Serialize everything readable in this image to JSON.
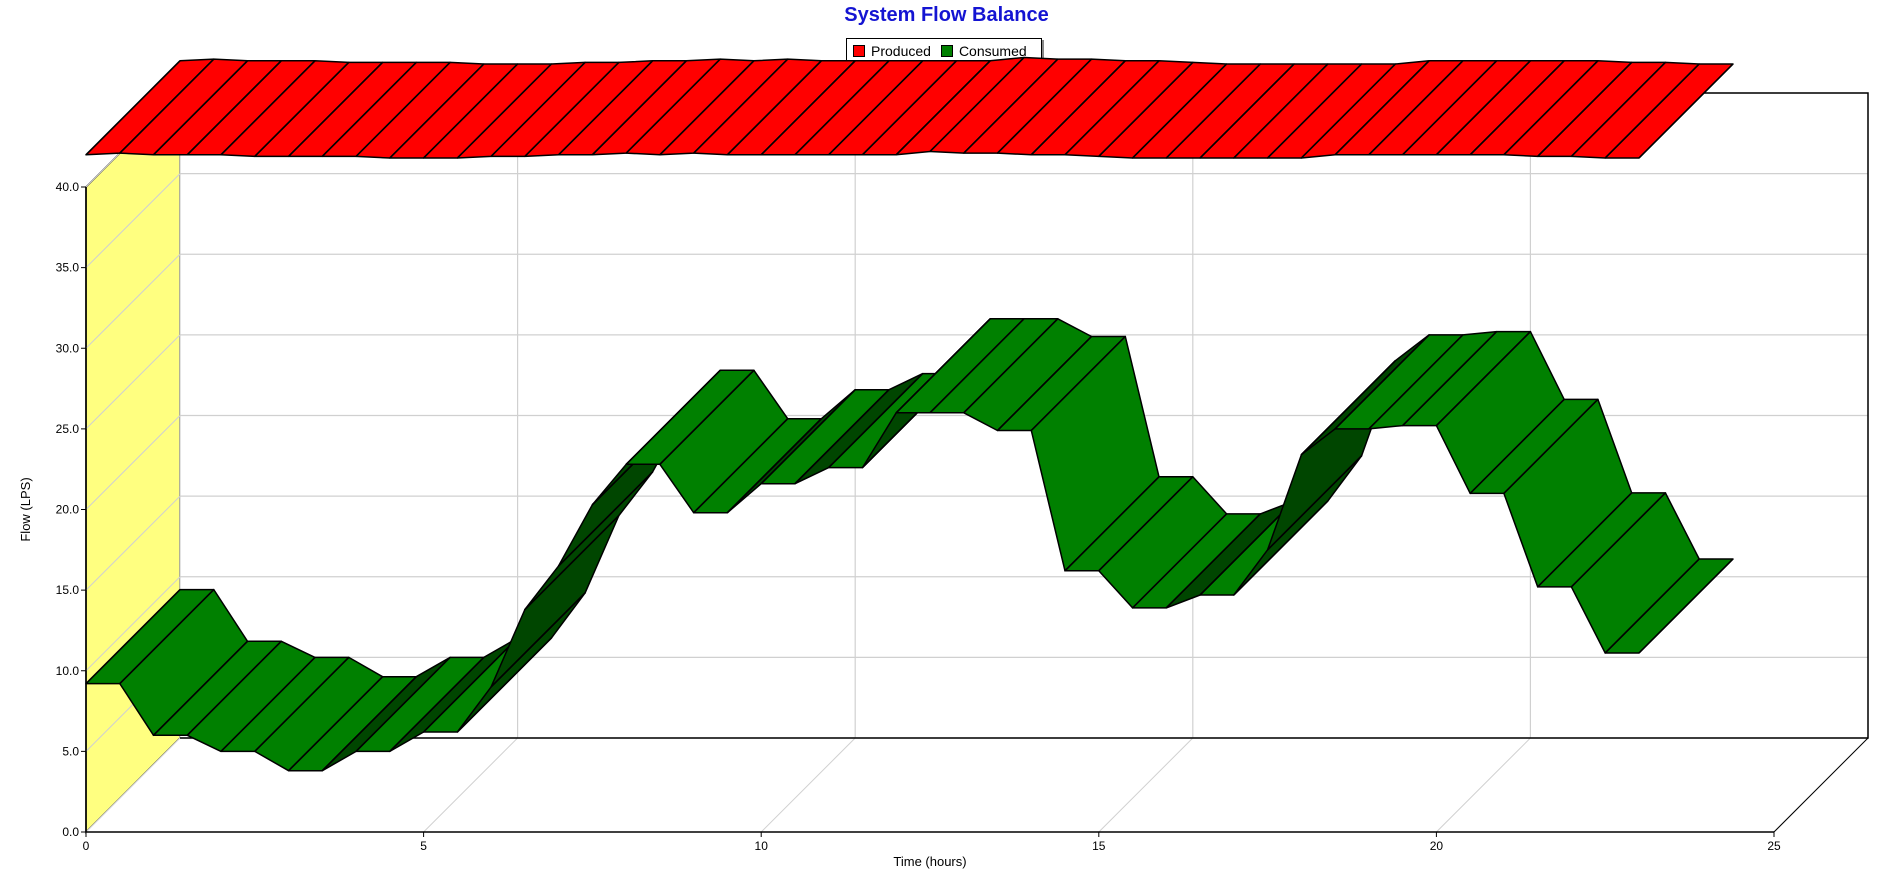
{
  "chart_data": {
    "type": "area",
    "title": "System Flow Balance",
    "xlabel": "Time (hours)",
    "ylabel": "Flow (LPS)",
    "xlim": [
      0,
      25
    ],
    "ylim": [
      0,
      40
    ],
    "x_ticks": [
      "0",
      "5",
      "10",
      "15",
      "20",
      "25"
    ],
    "y_ticks": [
      "0.0",
      "5.0",
      "10.0",
      "15.0",
      "20.0",
      "25.0",
      "30.0",
      "35.0",
      "40.0"
    ],
    "grid": true,
    "legend_position": "top-center",
    "colors": {
      "produced": "#ff0000",
      "consumed": "#008000",
      "back_wall": "#ffff80",
      "title": "#1414d2"
    },
    "series": [
      {
        "name": "Produced",
        "x": [
          0,
          0.5,
          1,
          1.5,
          2,
          2.5,
          3,
          3.5,
          4,
          4.5,
          5,
          5.5,
          6,
          6.5,
          7,
          7.5,
          8,
          8.5,
          9,
          9.5,
          10,
          10.5,
          11,
          11.5,
          12,
          12.5,
          13,
          13.5,
          14,
          14.5,
          15,
          15.5,
          16,
          16.5,
          17,
          17.5,
          18,
          18.5,
          19,
          19.5,
          20,
          20.5,
          21,
          21.5,
          22,
          22.5,
          23
        ],
        "values": [
          42.0,
          42.1,
          42.0,
          42.0,
          42.0,
          41.9,
          41.9,
          41.9,
          41.9,
          41.8,
          41.8,
          41.8,
          41.9,
          41.9,
          42.0,
          42.0,
          42.1,
          42.0,
          42.1,
          42.0,
          42.0,
          42.0,
          42.0,
          42.0,
          42.0,
          42.2,
          42.1,
          42.1,
          42.0,
          42.0,
          41.9,
          41.8,
          41.8,
          41.8,
          41.8,
          41.8,
          41.8,
          42.0,
          42.0,
          42.0,
          42.0,
          42.0,
          42.0,
          41.9,
          41.9,
          41.8,
          41.8
        ]
      },
      {
        "name": "Consumed",
        "x": [
          0,
          0.5,
          1,
          1.5,
          2,
          2.5,
          3,
          3.5,
          4,
          4.5,
          5,
          5.5,
          6,
          6.5,
          7,
          7.5,
          8,
          8.5,
          9,
          9.5,
          10,
          10.5,
          11,
          11.5,
          12,
          12.5,
          13,
          13.5,
          14,
          14.5,
          15,
          15.5,
          16,
          16.5,
          17,
          17.5,
          18,
          18.5,
          19,
          19.5,
          20,
          20.5,
          21,
          21.5,
          22,
          22.5,
          23
        ],
        "values": [
          9.2,
          9.2,
          6.0,
          6.0,
          5.0,
          5.0,
          3.8,
          3.8,
          5.0,
          5.0,
          6.2,
          6.2,
          9.0,
          13.8,
          16.5,
          20.3,
          22.8,
          22.8,
          19.8,
          19.8,
          21.6,
          21.6,
          22.6,
          22.6,
          26.0,
          26.0,
          26.0,
          24.9,
          24.9,
          16.2,
          16.2,
          13.9,
          13.9,
          14.7,
          14.7,
          17.5,
          23.4,
          25.0,
          25.0,
          25.2,
          25.2,
          21.0,
          21.0,
          15.2,
          15.2,
          11.1,
          11.1
        ]
      }
    ]
  }
}
